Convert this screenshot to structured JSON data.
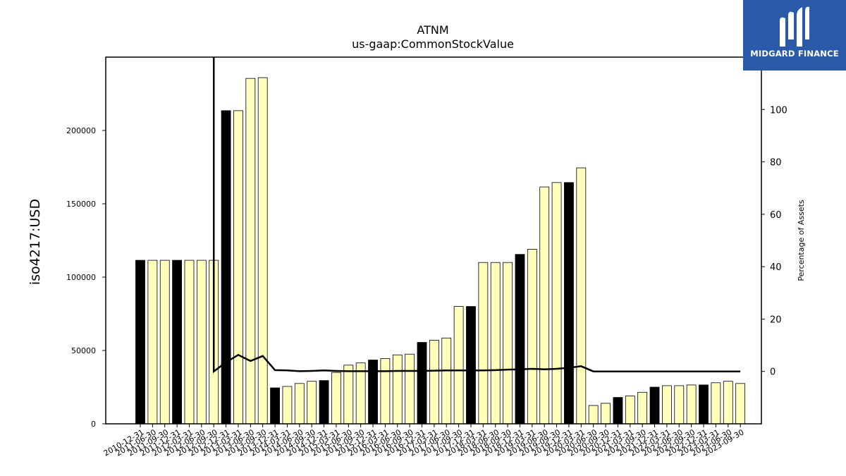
{
  "chart_data": {
    "type": "bar",
    "title": "ATNM",
    "subtitle": "us-gaap:CommonStockValue",
    "ylabel": "iso4217:USD",
    "y2label": "Percentage of Assets",
    "ylim": [
      0,
      250000
    ],
    "y2lim": [
      -20,
      120
    ],
    "yticks": [
      0,
      50000,
      100000,
      150000,
      200000
    ],
    "y2ticks": [
      0,
      20,
      40,
      60,
      80,
      100
    ],
    "categories": [
      "2010-12-31",
      "2011-06-30",
      "2011-09-30",
      "2011-12-31",
      "2012-03-31",
      "2012-06-30",
      "2012-09-30",
      "2012-12-31",
      "2013-03-31",
      "2013-06-30",
      "2013-09-30",
      "2013-12-31",
      "2014-03-31",
      "2014-06-30",
      "2014-09-30",
      "2014-12-31",
      "2015-03-31",
      "2015-06-30",
      "2015-09-30",
      "2015-12-31",
      "2016-03-31",
      "2016-06-30",
      "2016-09-30",
      "2016-12-31",
      "2017-03-31",
      "2017-06-30",
      "2017-09-30",
      "2017-12-31",
      "2018-03-31",
      "2018-06-30",
      "2018-09-30",
      "2018-12-31",
      "2019-03-31",
      "2019-06-30",
      "2019-09-30",
      "2019-12-31",
      "2020-03-31",
      "2020-06-30",
      "2020-09-30",
      "2020-12-31",
      "2021-03-31",
      "2021-09-30",
      "2021-12-31",
      "2022-03-31",
      "2022-06-30",
      "2022-09-30",
      "2022-12-31",
      "2023-03-31",
      "2023-06-30",
      "2023-09-30"
    ],
    "values": [
      111500,
      111500,
      111500,
      111500,
      111500,
      111500,
      111500,
      213500,
      213500,
      235500,
      236000,
      24500,
      25500,
      27500,
      29000,
      29500,
      35000,
      40000,
      41500,
      43500,
      44500,
      47000,
      47500,
      55500,
      57000,
      58500,
      80000,
      80000,
      110000,
      110000,
      110000,
      115500,
      119000,
      161500,
      164500,
      164500,
      174500,
      12500,
      14000,
      18000,
      19000,
      21500,
      25000,
      26000,
      26000,
      26500,
      26500,
      28000,
      29000,
      27500
    ],
    "highlight": [
      true,
      false,
      false,
      true,
      false,
      false,
      false,
      true,
      false,
      false,
      false,
      true,
      false,
      false,
      false,
      true,
      false,
      false,
      false,
      true,
      false,
      false,
      false,
      true,
      false,
      false,
      false,
      true,
      false,
      false,
      false,
      true,
      false,
      false,
      false,
      true,
      false,
      false,
      false,
      true,
      false,
      false,
      true,
      false,
      false,
      false,
      true,
      false,
      false,
      false
    ],
    "line_series": {
      "name": "Percentage of Assets",
      "values": [
        null,
        null,
        null,
        null,
        null,
        null,
        0,
        3.5,
        6.3,
        4,
        5.9,
        0.5,
        0.4,
        0.1,
        0.2,
        0.4,
        0.2,
        0.1,
        0.1,
        0.1,
        0.1,
        0.2,
        0.2,
        0.2,
        0.3,
        0.4,
        0.4,
        0.4,
        0.4,
        0.5,
        0.7,
        0.8,
        1,
        0.8,
        1,
        1.4,
        2,
        0,
        0,
        0,
        0,
        0,
        0,
        0,
        0,
        0,
        0,
        0,
        0,
        0
      ]
    },
    "line_spike_top": 120,
    "colors": {
      "bar_highlight": "#000000",
      "bar_normal": "#ffffbb",
      "bar_edge": "#000000",
      "line": "#000000"
    },
    "grid": false,
    "legend": "none"
  },
  "logo": {
    "text": "MIDGARD FINANCE",
    "bg": "#2b5aa8"
  }
}
